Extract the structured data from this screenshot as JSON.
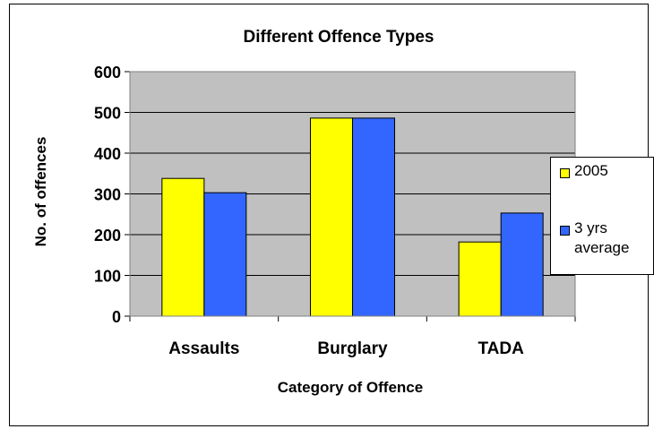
{
  "chart_data": {
    "type": "bar",
    "title": "Different Offence Types",
    "xlabel": "Category of Offence",
    "ylabel": "No. of offences",
    "categories": [
      "Assaults",
      "Burglary",
      "TADA"
    ],
    "series": [
      {
        "name": "2005",
        "values": [
          338,
          486,
          182
        ],
        "color": "#ffff00"
      },
      {
        "name": "3 yrs average",
        "values": [
          303,
          486,
          253
        ],
        "color": "#3366ff"
      }
    ],
    "ylim": [
      0,
      600
    ],
    "yticks": [
      0,
      100,
      200,
      300,
      400,
      500,
      600
    ],
    "grid": true,
    "plot_background": "#c0c0c0",
    "legend": "right"
  }
}
